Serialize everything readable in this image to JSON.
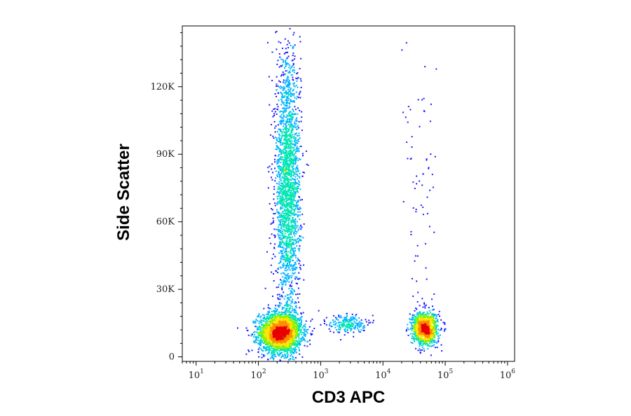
{
  "chart_data": {
    "type": "scatter",
    "title": "",
    "xlabel": "CD3 APC",
    "ylabel": "Side Scatter",
    "x_scale": "log",
    "xlim": [
      6,
      1300000
    ],
    "ylim": [
      -2000,
      147000
    ],
    "grid": false,
    "legend": "none",
    "x_ticks": [
      {
        "value": 10,
        "base": "10",
        "exp": "1"
      },
      {
        "value": 100,
        "base": "10",
        "exp": "2"
      },
      {
        "value": 1000,
        "base": "10",
        "exp": "3"
      },
      {
        "value": 10000,
        "base": "10",
        "exp": "4"
      },
      {
        "value": 100000,
        "base": "10",
        "exp": "5"
      },
      {
        "value": 1000000,
        "base": "10",
        "exp": "6"
      }
    ],
    "y_ticks": [
      {
        "value": 0,
        "label": "0"
      },
      {
        "value": 30000,
        "label": "30K"
      },
      {
        "value": 60000,
        "label": "60K"
      },
      {
        "value": 90000,
        "label": "90K"
      },
      {
        "value": 120000,
        "label": "120K"
      }
    ],
    "density_colormap": [
      "#1a1aff",
      "#00b4ff",
      "#00e6b4",
      "#8cf000",
      "#ffe600",
      "#ff8c00",
      "#e60000"
    ],
    "populations": [
      {
        "x_center": 220,
        "y_center": 11000,
        "x_log_sd": 0.17,
        "y_sd": 4500,
        "count": 2600
      },
      {
        "x_center": 290,
        "y_center": 75000,
        "x_log_sd": 0.1,
        "y_sd": 30000,
        "count": 2400
      },
      {
        "x_center": 2600,
        "y_center": 15000,
        "x_log_sd": 0.15,
        "y_sd": 2000,
        "count": 220
      },
      {
        "x_center": 46000,
        "y_center": 13000,
        "x_log_sd": 0.1,
        "y_sd": 3500,
        "count": 1300
      },
      {
        "x_center": 40000,
        "y_center": 70000,
        "x_log_sd": 0.15,
        "y_sd": 30000,
        "count": 70
      }
    ]
  }
}
